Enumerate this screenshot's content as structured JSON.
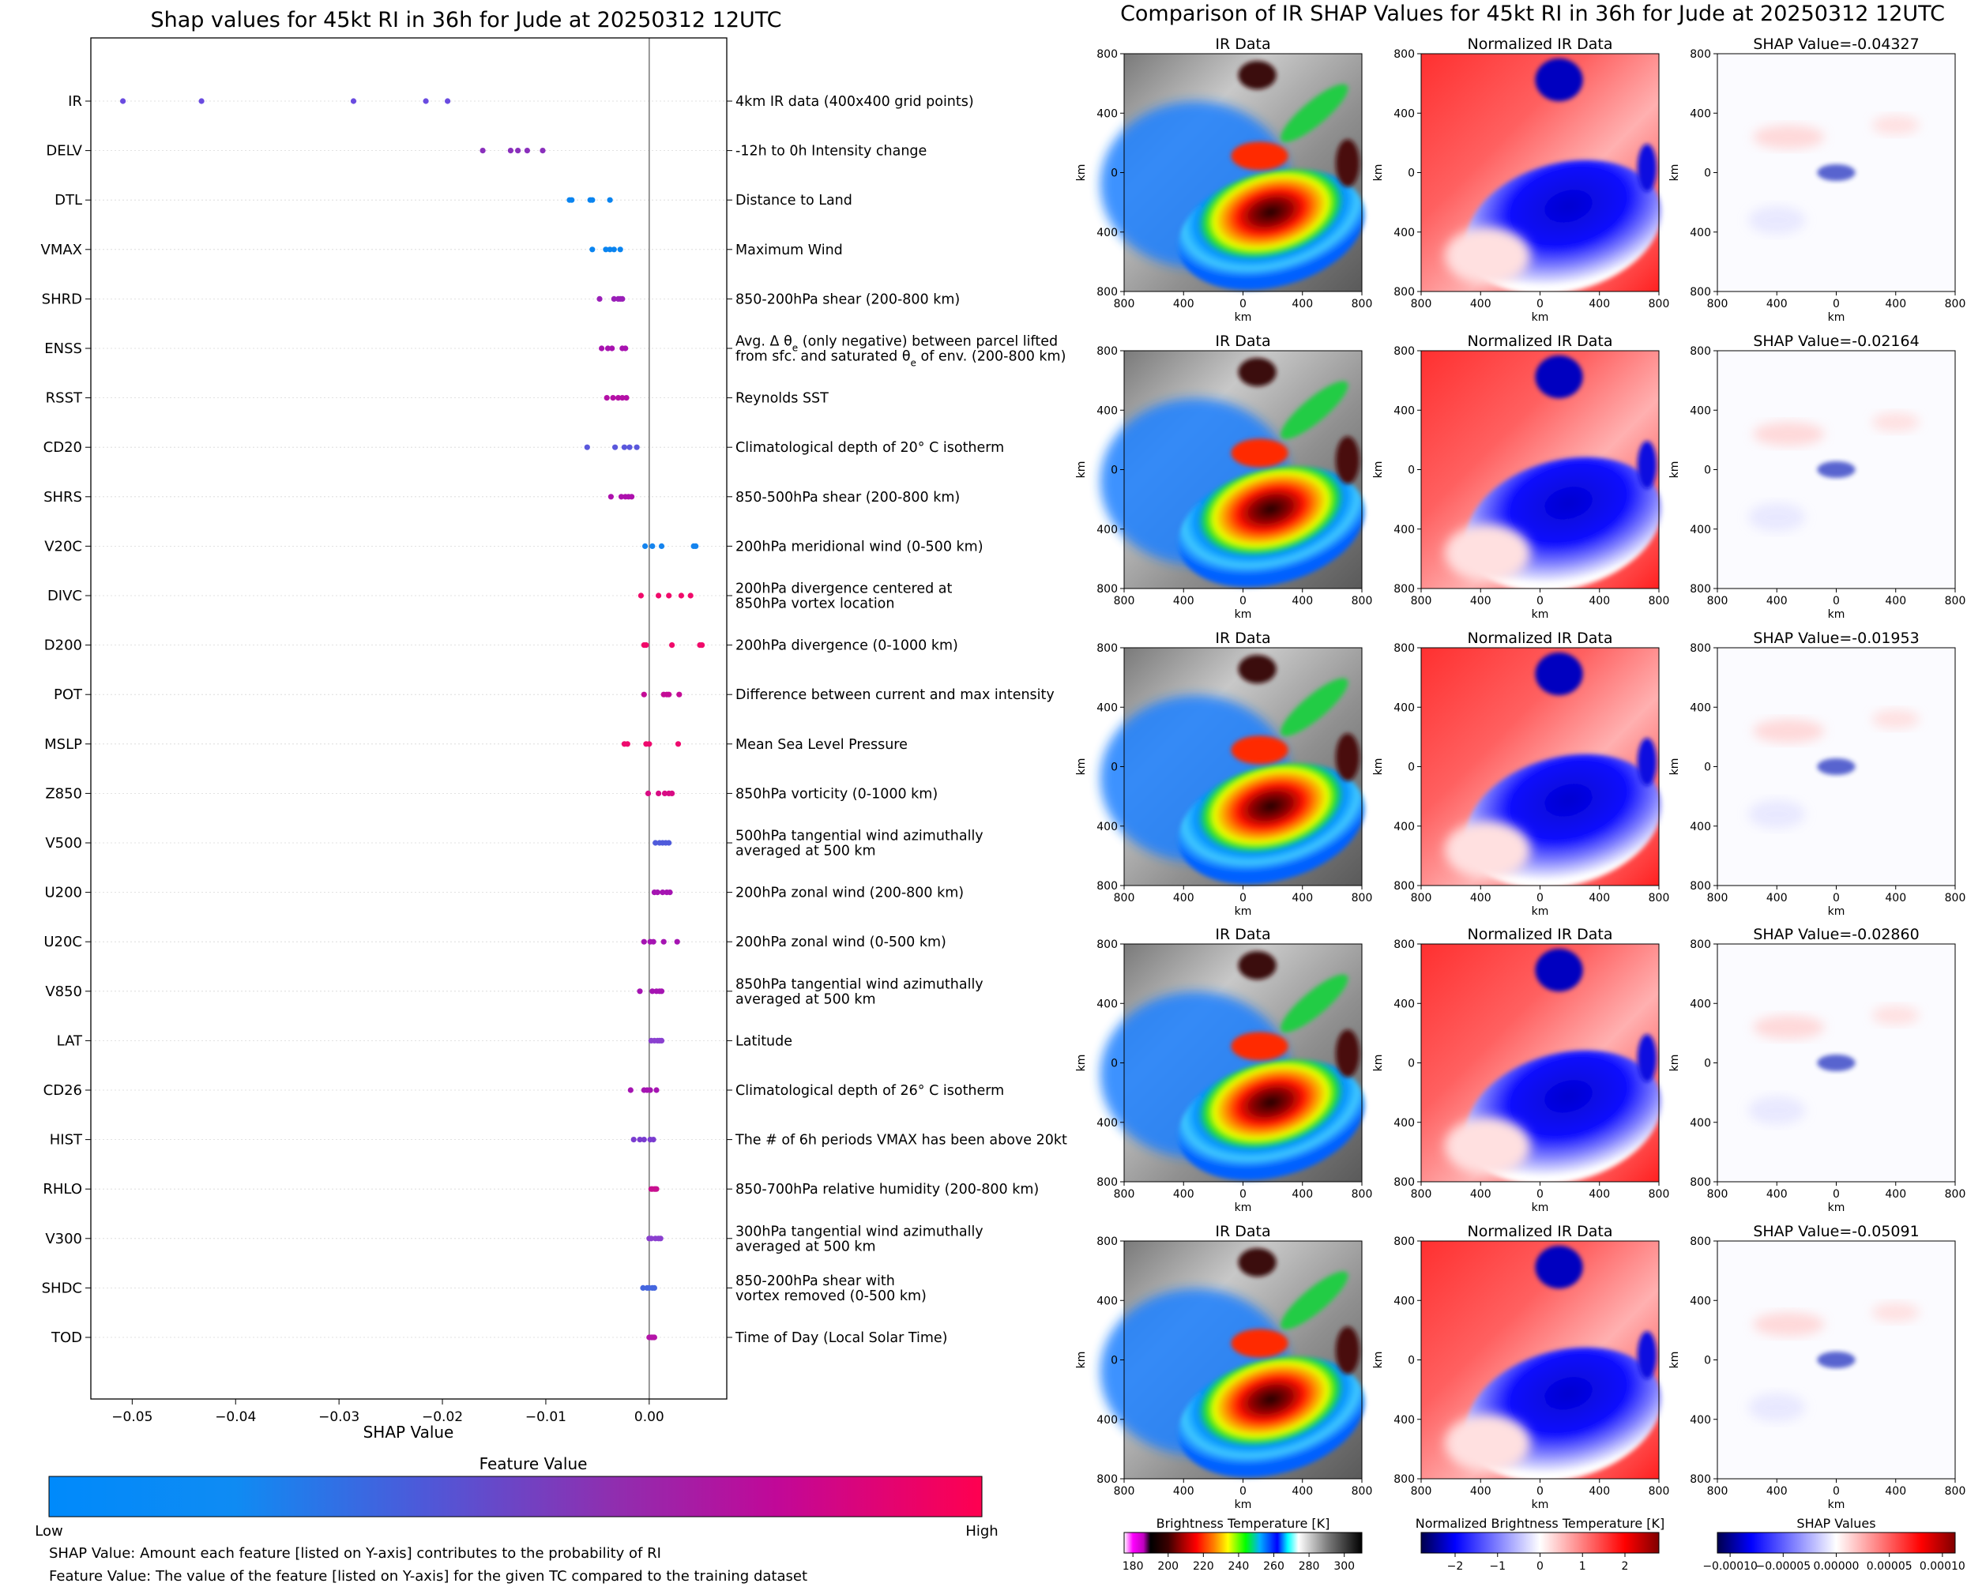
{
  "chart_data": [
    {
      "type": "scatter",
      "title": "Shap values for 45kt RI in 36h for Jude at 20250312 12UTC",
      "xlabel": "SHAP Value",
      "ylabel": "",
      "xlim": [
        -0.054,
        0.0075
      ],
      "xticks": [
        -0.05,
        -0.04,
        -0.03,
        -0.02,
        -0.01,
        0.0
      ],
      "xtick_labels": [
        "−0.05",
        "−0.04",
        "−0.03",
        "−0.02",
        "−0.01",
        "0.00"
      ],
      "colorbar": {
        "title": "Feature Value",
        "low_label": "Low",
        "high_label": "High",
        "colors": [
          "#008afb",
          "#0f8bf3",
          "#4d59d9",
          "#8e2fb0",
          "#c10898",
          "#ff0050"
        ]
      },
      "footnotes": [
        "SHAP Value: Amount each feature [listed on Y-axis] contributes to the probability of RI",
        "Feature Value: The value of the feature [listed on Y-axis] for the given TC compared to the training dataset"
      ],
      "features": [
        {
          "name": "IR",
          "description": [
            "4km IR data (400x400 grid points)"
          ],
          "color": "#6a4be0",
          "shap": [
            -0.0509,
            -0.0433,
            -0.0286,
            -0.0216,
            -0.0195
          ]
        },
        {
          "name": "DELV",
          "description": [
            "-12h to 0h Intensity change"
          ],
          "color": "#8a2fbc",
          "shap": [
            -0.0161,
            -0.0134,
            -0.0127,
            -0.0118,
            -0.0103
          ]
        },
        {
          "name": "DTL",
          "description": [
            "Distance to Land"
          ],
          "color": "#0a84f0",
          "shap": [
            -0.0077,
            -0.0075,
            -0.0057,
            -0.0055,
            -0.0038
          ]
        },
        {
          "name": "VMAX",
          "description": [
            "Maximum Wind"
          ],
          "color": "#0a84f0",
          "shap": [
            -0.0055,
            -0.0042,
            -0.0038,
            -0.0034,
            -0.0028
          ]
        },
        {
          "name": "SHRD",
          "description": [
            "850-200hPa shear (200-800 km)"
          ],
          "color": "#9a1fb8",
          "shap": [
            -0.0048,
            -0.0034,
            -0.003,
            -0.0028,
            -0.0026
          ]
        },
        {
          "name": "ENSS",
          "description": [
            "Avg. Δ θe (only negative) between parcel lifted",
            "from sfc. and saturated θe of env. (200-800 km)"
          ],
          "color": "#a812b0",
          "shap": [
            -0.0046,
            -0.004,
            -0.0036,
            -0.0026,
            -0.0023
          ]
        },
        {
          "name": "RSST",
          "description": [
            "Reynolds SST"
          ],
          "color": "#b40fa6",
          "shap": [
            -0.0041,
            -0.0035,
            -0.003,
            -0.0026,
            -0.0022
          ]
        },
        {
          "name": "CD20",
          "description": [
            "Climatological depth of 20° C isotherm"
          ],
          "color": "#5a58dc",
          "shap": [
            -0.006,
            -0.0033,
            -0.0024,
            -0.0019,
            -0.0012
          ]
        },
        {
          "name": "SHRS",
          "description": [
            "850-500hPa shear (200-800 km)"
          ],
          "color": "#ad10ad",
          "shap": [
            -0.0037,
            -0.0027,
            -0.0023,
            -0.002,
            -0.0017
          ]
        },
        {
          "name": "V20C",
          "description": [
            "200hPa meridional wind (0-500 km)"
          ],
          "color": "#1584ee",
          "shap": [
            -0.0004,
            0.0003,
            0.0012,
            0.0043,
            0.0045
          ]
        },
        {
          "name": "DIVC",
          "description": [
            "200hPa divergence centered at",
            "850hPa vortex location"
          ],
          "color": "#f00a6a",
          "shap": [
            -0.0008,
            0.0009,
            0.0019,
            0.0031,
            0.004
          ]
        },
        {
          "name": "D200",
          "description": [
            "200hPa divergence (0-1000 km)"
          ],
          "color": "#f00a6a",
          "shap": [
            -0.0005,
            -0.0003,
            0.0022,
            0.0049,
            0.0051
          ]
        },
        {
          "name": "POT",
          "description": [
            "Difference between current and max intensity"
          ],
          "color": "#c40c96",
          "shap": [
            -0.0005,
            0.0014,
            0.0017,
            0.0019,
            0.0029
          ]
        },
        {
          "name": "MSLP",
          "description": [
            "Mean Sea Level Pressure"
          ],
          "color": "#ee0a6e",
          "shap": [
            -0.0024,
            -0.0021,
            -0.0003,
            0.0,
            0.0028
          ]
        },
        {
          "name": "Z850",
          "description": [
            "850hPa vorticity (0-1000 km)"
          ],
          "color": "#d80c84",
          "shap": [
            -0.0001,
            0.0009,
            0.0015,
            0.0019,
            0.0022
          ]
        },
        {
          "name": "V500",
          "description": [
            "500hPa tangential wind azimuthally",
            "averaged at 500 km"
          ],
          "color": "#4f5bdb",
          "shap": [
            0.0006,
            0.001,
            0.0013,
            0.0016,
            0.0019
          ]
        },
        {
          "name": "U200",
          "description": [
            "200hPa zonal wind (200-800 km)"
          ],
          "color": "#a514b2",
          "shap": [
            0.0005,
            0.0008,
            0.0013,
            0.0017,
            0.002
          ]
        },
        {
          "name": "U20C",
          "description": [
            "200hPa zonal wind (0-500 km)"
          ],
          "color": "#a514b2",
          "shap": [
            -0.0005,
            0.0001,
            0.0004,
            0.0014,
            0.0027
          ]
        },
        {
          "name": "V850",
          "description": [
            "850hPa tangential wind azimuthally",
            "averaged at 500 km"
          ],
          "color": "#a514b2",
          "shap": [
            -0.0009,
            0.0003,
            0.0007,
            0.001,
            0.0012
          ]
        },
        {
          "name": "LAT",
          "description": [
            "Latitude"
          ],
          "color": "#8a40d0",
          "shap": [
            0.0002,
            0.0005,
            0.0008,
            0.001,
            0.0012
          ]
        },
        {
          "name": "CD26",
          "description": [
            "Climatological depth of 26° C isotherm"
          ],
          "color": "#a514b2",
          "shap": [
            -0.0018,
            -0.0005,
            -0.0002,
            0.0001,
            0.0007
          ]
        },
        {
          "name": "HIST",
          "description": [
            "The # of 6h periods VMAX has been above 20kt"
          ],
          "color": "#7a3cd0",
          "shap": [
            -0.0015,
            -0.0009,
            -0.0005,
            0.0001,
            0.0004
          ]
        },
        {
          "name": "RHLO",
          "description": [
            "850-700hPa relative humidity (200-800 km)"
          ],
          "color": "#c8108f",
          "shap": [
            0.0002,
            0.0003,
            0.0005,
            0.0006,
            0.0007
          ]
        },
        {
          "name": "V300",
          "description": [
            "300hPa tangential wind azimuthally",
            "averaged at 500 km"
          ],
          "color": "#8a3fcf",
          "shap": [
            0.0,
            0.0002,
            0.0006,
            0.0009,
            0.0011
          ]
        },
        {
          "name": "SHDC",
          "description": [
            "850-200hPa shear with",
            "vortex removed (0-500 km)"
          ],
          "color": "#4566df",
          "shap": [
            -0.0006,
            -0.0002,
            0.0,
            0.0003,
            0.0005
          ]
        },
        {
          "name": "TOD",
          "description": [
            "Time of Day (Local Solar Time)"
          ],
          "color": "#b414a8",
          "shap": [
            0.0,
            0.0002,
            0.0003,
            0.0004,
            0.0005
          ]
        }
      ]
    },
    {
      "type": "heatmap",
      "title": "Comparison of IR SHAP Values for 45kt RI in 36h for Jude at 20250312 12UTC",
      "axis_label": "km",
      "ticks": [
        -800,
        -400,
        0,
        400,
        800
      ],
      "tick_labels": [
        "800",
        "400",
        "0",
        "400",
        "800"
      ],
      "panel_titles": {
        "ir": "IR Data",
        "norm": "Normalized IR Data",
        "shap_prefix": "SHAP Value="
      },
      "rows": [
        {
          "shap_value": "-0.04327"
        },
        {
          "shap_value": "-0.02164"
        },
        {
          "shap_value": "-0.01953"
        },
        {
          "shap_value": "-0.02860"
        },
        {
          "shap_value": "-0.05091"
        }
      ],
      "colorbars": [
        {
          "title": "Brightness Temperature [K]",
          "ticks": [
            "180",
            "200",
            "220",
            "240",
            "260",
            "280",
            "300"
          ],
          "tick_values": [
            180,
            200,
            220,
            240,
            260,
            280,
            300
          ],
          "range": [
            175,
            310
          ],
          "stops": [
            {
              "v": 175,
              "c": "#ffffff"
            },
            {
              "v": 180,
              "c": "#ff00ff"
            },
            {
              "v": 186,
              "c": "#c000c0"
            },
            {
              "v": 190,
              "c": "#000000"
            },
            {
              "v": 200,
              "c": "#3a0000"
            },
            {
              "v": 208,
              "c": "#a00000"
            },
            {
              "v": 216,
              "c": "#ff0000"
            },
            {
              "v": 226,
              "c": "#ff8000"
            },
            {
              "v": 234,
              "c": "#ffff00"
            },
            {
              "v": 244,
              "c": "#00ff00"
            },
            {
              "v": 252,
              "c": "#00b0ff"
            },
            {
              "v": 262,
              "c": "#0000ff"
            },
            {
              "v": 268,
              "c": "#00ffff"
            },
            {
              "v": 274,
              "c": "#ffffff"
            },
            {
              "v": 290,
              "c": "#808080"
            },
            {
              "v": 310,
              "c": "#000000"
            }
          ]
        },
        {
          "title": "Normalized Brightness Temperature [K]",
          "ticks": [
            "−2",
            "−1",
            "0",
            "1",
            "2"
          ],
          "tick_values": [
            -2,
            -1,
            0,
            1,
            2
          ],
          "range": [
            -2.8,
            2.8
          ],
          "stops": [
            {
              "v": -2.8,
              "c": "#00004c"
            },
            {
              "v": -2.0,
              "c": "#0000ff"
            },
            {
              "v": 0.0,
              "c": "#ffffff"
            },
            {
              "v": 2.0,
              "c": "#ff0000"
            },
            {
              "v": 2.8,
              "c": "#800000"
            }
          ]
        },
        {
          "title": "SHAP Values",
          "ticks": [
            "−0.00010",
            "−0.00005",
            "0.00000",
            "0.00005",
            "0.00010"
          ],
          "tick_values": [
            -0.0001,
            -5e-05,
            0.0,
            5e-05,
            0.0001
          ],
          "range": [
            -0.000112,
            0.000112
          ],
          "stops": [
            {
              "v": -0.000112,
              "c": "#00004c"
            },
            {
              "v": -8e-05,
              "c": "#0000ff"
            },
            {
              "v": 0.0,
              "c": "#ffffff"
            },
            {
              "v": 8e-05,
              "c": "#ff0000"
            },
            {
              "v": 0.000112,
              "c": "#800000"
            }
          ]
        }
      ]
    }
  ]
}
